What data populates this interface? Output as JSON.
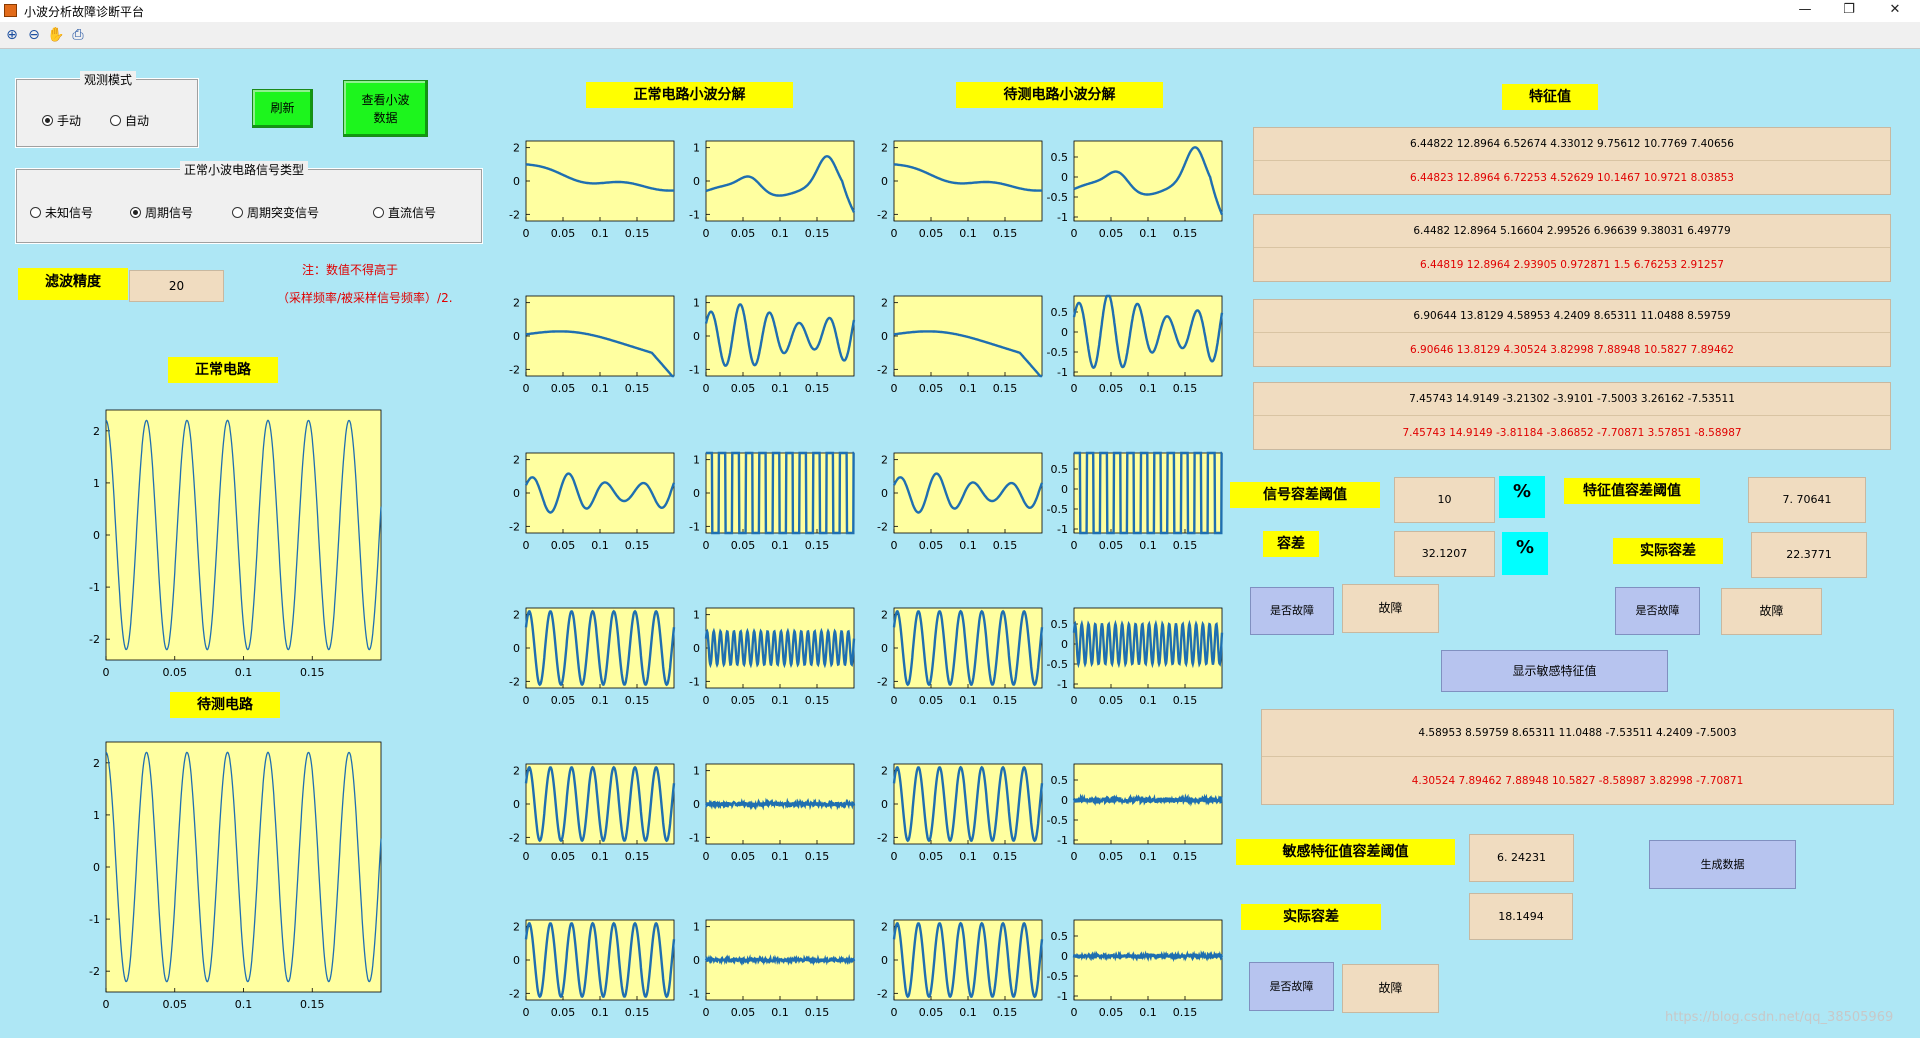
{
  "window": {
    "title": "小波分析故障诊断平台",
    "min_glyph": "—",
    "max_glyph": "❐",
    "close_glyph": "✕"
  },
  "toolbar": {
    "icons": [
      "zoom-in-icon",
      "zoom-out-icon",
      "pan-hand-icon",
      "print-icon"
    ],
    "glyphs": [
      "⊕",
      "⊖",
      "✋",
      "⎙"
    ]
  },
  "mode_panel": {
    "title": "观测模式",
    "options": [
      {
        "label": "手动",
        "selected": true
      },
      {
        "label": "自动",
        "selected": false
      }
    ]
  },
  "buttons": {
    "refresh": "刷新",
    "view_wavelet": "查看小波数据",
    "generate": "生成数据",
    "show_sensitive": "显示敏感特征值",
    "is_fault": "是否故障"
  },
  "signal_panel": {
    "title": "正常小波电路信号类型",
    "options": [
      {
        "label": "未知信号",
        "selected": false
      },
      {
        "label": "周期信号",
        "selected": true
      },
      {
        "label": "周期突变信号",
        "selected": false
      },
      {
        "label": "直流信号",
        "selected": false
      }
    ]
  },
  "filter": {
    "label": "滤波精度",
    "value": "20",
    "note_line1": "注：数值不得高于",
    "note_line2": "（采样频率/被采样信号频率）/2."
  },
  "labels": {
    "normal_circuit": "正常电路",
    "test_circuit": "待测电路",
    "normal_decomp": "正常电路小波分解",
    "test_decomp": "待测电路小波分解",
    "features": "特征值",
    "signal_tol_threshold": "信号容差阈值",
    "tolerance": "容差",
    "feature_tol_threshold": "特征值容差阈值",
    "actual_tol": "实际容差",
    "sensitive_tol_threshold": "敏感特征值容差阈值",
    "actual_tol2": "实际容差"
  },
  "values": {
    "signal_tol_threshold": "10",
    "signal_tol": "32.1207",
    "percent": "%",
    "feature_tol_threshold": "7. 70641",
    "feature_actual_tol": "22.3771",
    "sensitive_tol_threshold": "6. 24231",
    "sensitive_actual_tol": "18.1494",
    "fault_result_1": "故障",
    "fault_result_2": "故障",
    "fault_result_3": "故障"
  },
  "feature_groups": [
    {
      "normal": "6.44822      12.8964      6.52674      4.33012      9.75612      10.7769      7.40656",
      "test": "6.44823      12.8964      6.72253      4.52629      10.1467      10.9721      8.03853"
    },
    {
      "normal": "6.4482      12.8964      5.16604      2.99526      6.96639      9.38031      6.49779",
      "test": "6.44819      12.8964      2.93905      0.972871      1.5      6.76253      2.91257"
    },
    {
      "normal": "6.90644      13.8129      4.58953      4.2409      8.65311      11.0488      8.59759",
      "test": "6.90646      13.8129      4.30524      3.82998      7.88948      10.5827      7.89462"
    },
    {
      "normal": "7.45743      14.9149      -3.21302      -3.9101      -7.5003      3.26162      -7.53511",
      "test": "7.45743      14.9149      -3.81184      -3.86852      -7.70871      3.57851      -8.58987"
    }
  ],
  "sensitive_features": {
    "normal": "4.58953      8.59759      8.65311      11.0488      -7.53511      4.2409      -7.5003",
    "test": "4.30524      7.89462      7.88948      10.5827      -8.58987      3.82998      -7.70871"
  },
  "watermark": "https://blog.csdn.net/qq_38505969",
  "colors": {
    "background": "#aee7f5",
    "axes_bg": "#ffffa0",
    "line": "#1f6fb0",
    "label_bg": "#ffff00",
    "value_box": "#f0dcc0",
    "button_blue": "#b7c4ef",
    "button_green": "#1df51d",
    "percent_box": "#00ffff",
    "red_text": "#e00000"
  },
  "chart_data": [
    {
      "type": "line",
      "name": "normal-circuit",
      "xlim": [
        0,
        0.2
      ],
      "ylim": [
        -2.4,
        2.4
      ],
      "xticks": [
        "0",
        "0.05",
        "0.1",
        "0.15"
      ],
      "yticks": [
        "2",
        "1",
        "0",
        "-1",
        "-2"
      ],
      "signal": {
        "amplitude": 2.2,
        "cycles": 7
      }
    },
    {
      "type": "line",
      "name": "test-circuit",
      "xlim": [
        0,
        0.2
      ],
      "ylim": [
        -2.4,
        2.4
      ],
      "xticks": [
        "0",
        "0.05",
        "0.1",
        "0.15"
      ],
      "yticks": [
        "2",
        "1",
        "0",
        "-1",
        "-2"
      ],
      "signal": {
        "amplitude": 2.2,
        "cycles": 7
      }
    },
    {
      "type": "line",
      "name": "wavelet-decomposition-grid",
      "xticks": [
        "0",
        "0.05",
        "0.1",
        "0.15"
      ],
      "left_yticks": [
        "2",
        "0",
        "-2"
      ],
      "right_yticks_normal": [
        "1",
        "0",
        "-1"
      ],
      "right_yticks_test": [
        "0.5",
        "0",
        "-0.5",
        "-1"
      ],
      "levels": [
        {
          "approx": {
            "type": "smooth",
            "start": 1.0,
            "end": -0.8
          },
          "detail": {
            "type": "bump"
          }
        },
        {
          "approx": {
            "type": "smooth2"
          },
          "detail": {
            "type": "osc",
            "cycles": 5,
            "amp": 0.95
          }
        },
        {
          "approx": {
            "type": "osc",
            "cycles": 4,
            "amp": 1.2
          },
          "detail": {
            "type": "square",
            "cycles": 11
          }
        },
        {
          "approx": {
            "type": "osc",
            "cycles": 7,
            "amp": 2.2
          },
          "detail": {
            "type": "osc",
            "cycles": 22,
            "amp": 0.5
          }
        },
        {
          "approx": {
            "type": "osc",
            "cycles": 7,
            "amp": 2.2
          },
          "detail": {
            "type": "noise",
            "amp": 0.06
          }
        },
        {
          "approx": {
            "type": "osc",
            "cycles": 7,
            "amp": 2.2
          },
          "detail": {
            "type": "noise",
            "amp": 0.04
          }
        }
      ]
    }
  ]
}
